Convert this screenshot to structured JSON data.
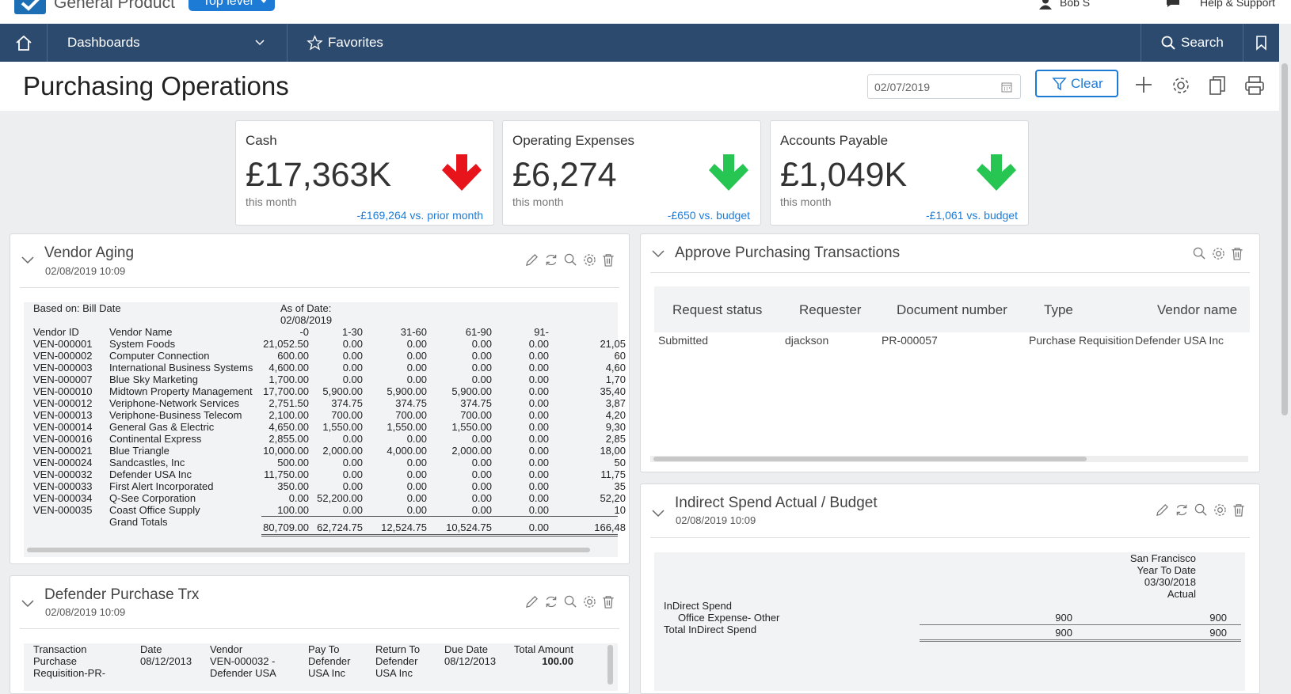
{
  "topbar": {
    "app_title": "General Product",
    "level_label": "Top level",
    "user_name": "Bob S",
    "help_label": "Help & Support"
  },
  "nav": {
    "dashboards_label": "Dashboards",
    "favorites_label": "Favorites",
    "search_label": "Search"
  },
  "header": {
    "page_title": "Purchasing Operations",
    "date_value": "02/07/2019",
    "clear_label": "Clear"
  },
  "kpis": [
    {
      "title": "Cash",
      "value": "£17,363K",
      "sub": "this month",
      "delta": "-£169,264 vs. prior month",
      "direction": "down",
      "arrow_color": "#e8141b"
    },
    {
      "title": "Operating Expenses",
      "value": "£6,274",
      "sub": "this month",
      "delta": "-£650 vs. budget",
      "direction": "down",
      "arrow_color": "#27c653"
    },
    {
      "title": "Accounts Payable",
      "value": "£1,049K",
      "sub": "this month",
      "delta": "-£1,061 vs. budget",
      "direction": "down",
      "arrow_color": "#27c653"
    }
  ],
  "vendor_aging": {
    "title": "Vendor Aging",
    "timestamp": "02/08/2019 10:09",
    "based_on": "Based on: Bill Date",
    "as_of_label": "As of Date:",
    "as_of_date": "02/08/2019",
    "columns": [
      "Vendor ID",
      "Vendor Name",
      "-0",
      "1-30",
      "31-60",
      "61-90",
      "91-",
      ""
    ],
    "rows": [
      [
        "VEN-000001",
        "System Foods",
        "21,052.50",
        "0.00",
        "0.00",
        "0.00",
        "0.00",
        "21,05"
      ],
      [
        "VEN-000002",
        "Computer Connection",
        "600.00",
        "0.00",
        "0.00",
        "0.00",
        "0.00",
        "60"
      ],
      [
        "VEN-000003",
        "International Business Systems",
        "4,600.00",
        "0.00",
        "0.00",
        "0.00",
        "0.00",
        "4,60"
      ],
      [
        "VEN-000007",
        "Blue Sky Marketing",
        "1,700.00",
        "0.00",
        "0.00",
        "0.00",
        "0.00",
        "1,70"
      ],
      [
        "VEN-000010",
        "Midtown Property Management",
        "17,700.00",
        "5,900.00",
        "5,900.00",
        "5,900.00",
        "0.00",
        "35,40"
      ],
      [
        "VEN-000012",
        "Veriphone-Network Services",
        "2,751.50",
        "374.75",
        "374.75",
        "374.75",
        "0.00",
        "3,87"
      ],
      [
        "VEN-000013",
        "Veriphone-Business Telecom",
        "2,100.00",
        "700.00",
        "700.00",
        "700.00",
        "0.00",
        "4,20"
      ],
      [
        "VEN-000014",
        "General Gas & Electric",
        "4,650.00",
        "1,550.00",
        "1,550.00",
        "1,550.00",
        "0.00",
        "9,30"
      ],
      [
        "VEN-000016",
        "Continental Express",
        "2,855.00",
        "0.00",
        "0.00",
        "0.00",
        "0.00",
        "2,85"
      ],
      [
        "VEN-000021",
        "Blue Triangle",
        "10,000.00",
        "2,000.00",
        "4,000.00",
        "2,000.00",
        "0.00",
        "18,00"
      ],
      [
        "VEN-000024",
        "Sandcastles, Inc",
        "500.00",
        "0.00",
        "0.00",
        "0.00",
        "0.00",
        "50"
      ],
      [
        "VEN-000032",
        "Defender USA Inc",
        "11,750.00",
        "0.00",
        "0.00",
        "0.00",
        "0.00",
        "11,75"
      ],
      [
        "VEN-000033",
        "First Alert Incorporated",
        "350.00",
        "0.00",
        "0.00",
        "0.00",
        "0.00",
        "35"
      ],
      [
        "VEN-000034",
        "Q-See Corporation",
        "0.00",
        "52,200.00",
        "0.00",
        "0.00",
        "0.00",
        "52,20"
      ],
      [
        "VEN-000035",
        "Coast Office Supply",
        "100.00",
        "0.00",
        "0.00",
        "0.00",
        "0.00",
        "10"
      ]
    ],
    "totals_label": "Grand Totals",
    "totals": [
      "80,709.00",
      "62,724.75",
      "12,524.75",
      "10,524.75",
      "0.00",
      "166,48"
    ]
  },
  "approve": {
    "title": "Approve Purchasing Transactions",
    "columns": [
      "Request status",
      "Requester",
      "Document number",
      "Type",
      "Vendor name"
    ],
    "rows": [
      [
        "Submitted",
        "djackson",
        "PR-000057",
        "Purchase Requisition",
        "Defender USA Inc"
      ]
    ]
  },
  "indirect": {
    "title": "Indirect Spend Actual / Budget",
    "timestamp": "02/08/2019 10:09",
    "col_header": [
      "San Francisco",
      "Year To Date",
      "03/30/2018",
      "Actual"
    ],
    "group_label": "InDirect Spend",
    "line_label": "Office Expense- Other",
    "line_values": [
      "900",
      "900"
    ],
    "total_label": "Total InDirect Spend",
    "total_values": [
      "900",
      "900"
    ]
  },
  "defender": {
    "title": "Defender Purchase Trx",
    "timestamp": "02/08/2019 10:09",
    "columns": [
      "Transaction",
      "Date",
      "Vendor",
      "Pay To",
      "Return To",
      "Due Date",
      "Total Amount"
    ],
    "row": [
      "Purchase",
      "08/12/2013",
      "VEN-000032 -",
      "Defender",
      "Defender",
      "08/12/2013",
      "100.00"
    ],
    "row2": [
      "Requisition-PR-",
      "",
      "Defender USA",
      "USA Inc",
      "USA Inc",
      "",
      ""
    ]
  }
}
